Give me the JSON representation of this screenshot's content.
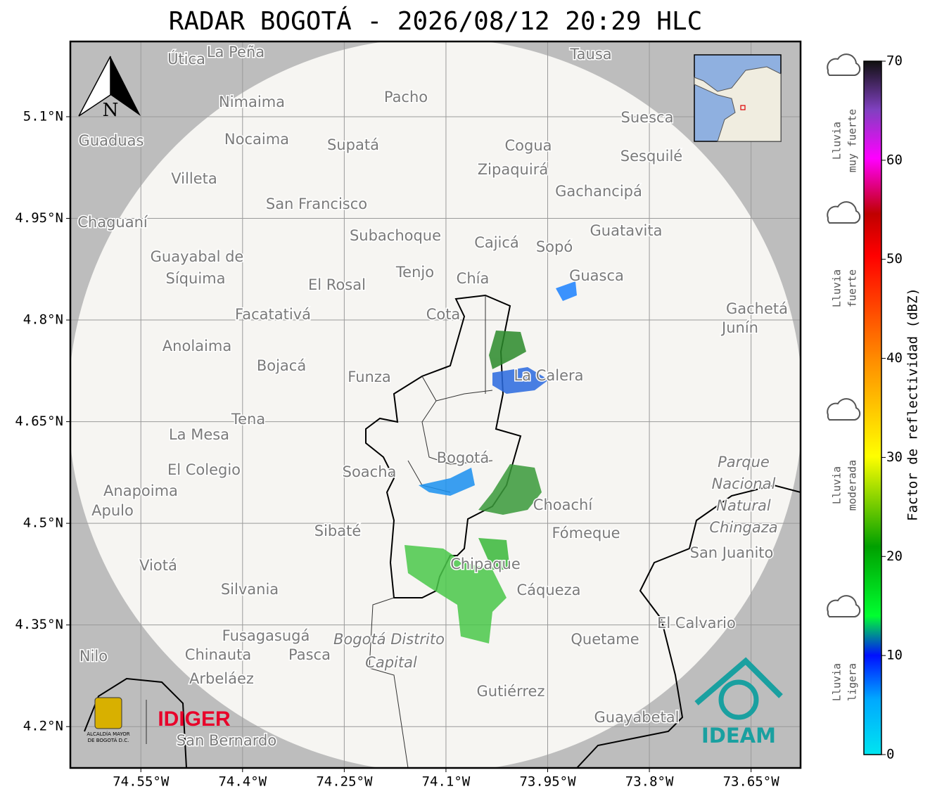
{
  "title": "RADAR BOGOTÁ - 2026/08/12 20:29 HLC",
  "north": "N",
  "map": {
    "xlim": [
      -74.654,
      -73.577
    ],
    "ylim": [
      4.139,
      5.211
    ],
    "xticks": [
      {
        "value": -74.55,
        "label": "74.55°W"
      },
      {
        "value": -74.4,
        "label": "74.4°W"
      },
      {
        "value": -74.25,
        "label": "74.25°W"
      },
      {
        "value": -74.1,
        "label": "74.1°W"
      },
      {
        "value": -73.95,
        "label": "73.95°W"
      },
      {
        "value": -73.8,
        "label": "73.8°W"
      },
      {
        "value": -73.65,
        "label": "73.65°W"
      }
    ],
    "yticks": [
      {
        "value": 5.1,
        "label": "5.1°N"
      },
      {
        "value": 4.95,
        "label": "4.95°N"
      },
      {
        "value": 4.8,
        "label": "4.8°N"
      },
      {
        "value": 4.65,
        "label": "4.65°N"
      },
      {
        "value": 4.5,
        "label": "4.5°N"
      },
      {
        "value": 4.35,
        "label": "4.35°N"
      },
      {
        "value": 4.2,
        "label": "4.2°N"
      }
    ],
    "grid": true
  },
  "places": [
    "Útica",
    "La Peña",
    "Tausa",
    "Pacho",
    "Nimaima",
    "Guaduas",
    "Nocaima",
    "Supatá",
    "Cogua",
    "Suesca",
    "Sesquilé",
    "Zipaquirá",
    "Villeta",
    "Gachancipá",
    "San Francisco",
    "Chaguaní",
    "Guatavita",
    "Subachoque",
    "Cajicá",
    "Sopó",
    "Guayabal de",
    "Síquima",
    "Tenjo",
    "Chía",
    "Guasca",
    "El Rosal",
    "Facatativá",
    "Cota",
    "Gachetá",
    "Junín",
    "Anolaima",
    "Bojacá",
    "Funza",
    "La Calera",
    "Tena",
    "La Mesa",
    "Bogotá",
    "El Colegio",
    "Soacha",
    "Anapoima",
    "Apulo",
    "Choachí",
    "Sibaté",
    "Fómeque",
    "San Juanito",
    "Viotá",
    "Chipaque",
    "Silvania",
    "Cáqueza",
    "El Calvario",
    "Quetame",
    "Fusagasugá",
    "Chinauta",
    "Pasca",
    "Nilo",
    "Arbeláez",
    "Gutiérrez",
    "Guayabetal",
    "San Bernardo"
  ],
  "park": [
    "Parque",
    "Nacional",
    "Natural",
    "Chingaza"
  ],
  "district": [
    "Bogotá Distrito",
    "Capital"
  ],
  "logos": {
    "alcaldia": [
      "ALCALDÍA MAYOR",
      "DE BOGOTÁ D.C."
    ],
    "idiger": "IDIGER",
    "ideam": "IDEAM"
  },
  "colorbar": {
    "label": "Factor de reflectividad (dBZ)",
    "lim": [
      0,
      70
    ],
    "ticks": [
      0,
      10,
      20,
      30,
      40,
      50,
      60,
      70
    ],
    "categories": [
      [
        "Lluvia",
        "muy fuerte"
      ],
      [
        "Lluvia",
        "fuerte"
      ],
      [
        "Lluvia",
        "moderada"
      ],
      [
        "Lluvia",
        "ligera"
      ]
    ]
  }
}
